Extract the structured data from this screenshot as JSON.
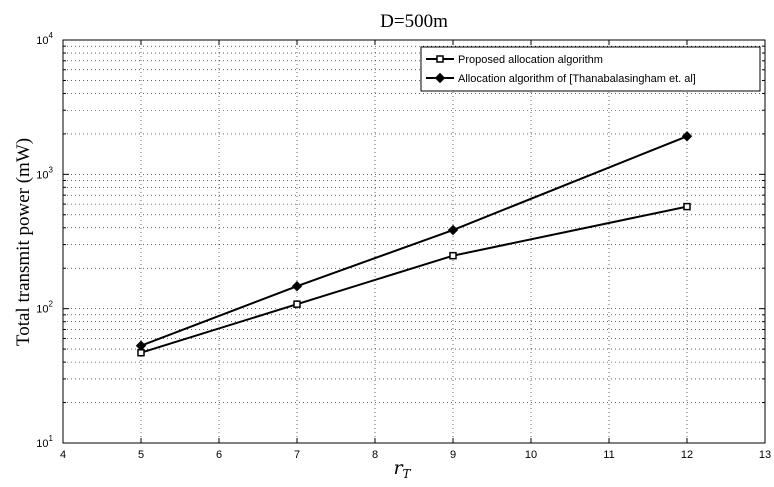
{
  "chart_data": {
    "type": "line",
    "title": "D=500m",
    "xlabel": {
      "main": "r",
      "sub": "T"
    },
    "ylabel": "Total transmit power (mW)",
    "xlim": [
      4,
      13
    ],
    "ylim": [
      10,
      10000
    ],
    "yscale": "log",
    "grid": true,
    "legend_position": "top-right",
    "x_ticks": [
      4,
      5,
      6,
      7,
      8,
      9,
      10,
      11,
      12,
      13
    ],
    "y_ticks": [
      {
        "base": "10",
        "exp": "1",
        "value": 10
      },
      {
        "base": "10",
        "exp": "2",
        "value": 100
      },
      {
        "base": "10",
        "exp": "3",
        "value": 1000
      },
      {
        "base": "10",
        "exp": "4",
        "value": 10000
      }
    ],
    "series": [
      {
        "name": "Proposed allocation algorithm",
        "marker": "square",
        "color": "#000000",
        "x": [
          5,
          7,
          9,
          12
        ],
        "y": [
          47,
          108,
          248,
          575
        ]
      },
      {
        "name": "Allocation algorithm of [Thanabalasingham et. al]",
        "marker": "diamond",
        "color": "#000000",
        "x": [
          5,
          7,
          9,
          12
        ],
        "y": [
          53,
          147,
          385,
          1920
        ]
      }
    ]
  }
}
